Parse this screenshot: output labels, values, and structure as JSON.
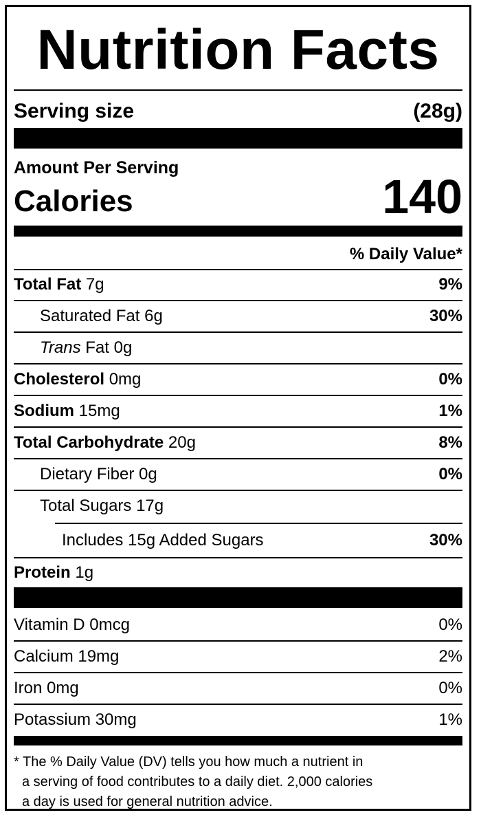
{
  "title": "Nutrition Facts",
  "serving": {
    "label": "Serving size",
    "value": "(28g)"
  },
  "amount_per_serving": "Amount Per Serving",
  "calories": {
    "label": "Calories",
    "value": "140"
  },
  "daily_value_header": "% Daily Value*",
  "nutrients": [
    {
      "name": "Total Fat",
      "amount": " 7g",
      "dv": "9%"
    },
    {
      "name": "Saturated Fat",
      "amount": " 6g",
      "dv": "30%"
    },
    {
      "name": "Trans",
      "amount": " Fat 0g",
      "dv": ""
    },
    {
      "name": "Cholesterol",
      "amount": " 0mg",
      "dv": "0%"
    },
    {
      "name": "Sodium",
      "amount": " 15mg",
      "dv": "1%"
    },
    {
      "name": "Total Carbohydrate",
      "amount": " 20g",
      "dv": "8%"
    },
    {
      "name": "Dietary Fiber",
      "amount": " 0g",
      "dv": "0%"
    },
    {
      "name": "Total Sugars",
      "amount": " 17g",
      "dv": ""
    },
    {
      "name": "Includes 15g Added Sugars",
      "amount": "",
      "dv": "30%"
    },
    {
      "name": "Protein",
      "amount": " 1g",
      "dv": ""
    }
  ],
  "vitamins": [
    {
      "name": "Vitamin D 0mcg",
      "dv": "0%"
    },
    {
      "name": "Calcium 19mg",
      "dv": "2%"
    },
    {
      "name": "Iron 0mg",
      "dv": "0%"
    },
    {
      "name": "Potassium 30mg",
      "dv": "1%"
    }
  ],
  "footnote": {
    "line1": "* The % Daily Value (DV) tells you how much a nutrient in",
    "line2": "a serving of food contributes to a daily diet. 2,000 calories",
    "line3": "a day is used for general nutrition advice."
  }
}
